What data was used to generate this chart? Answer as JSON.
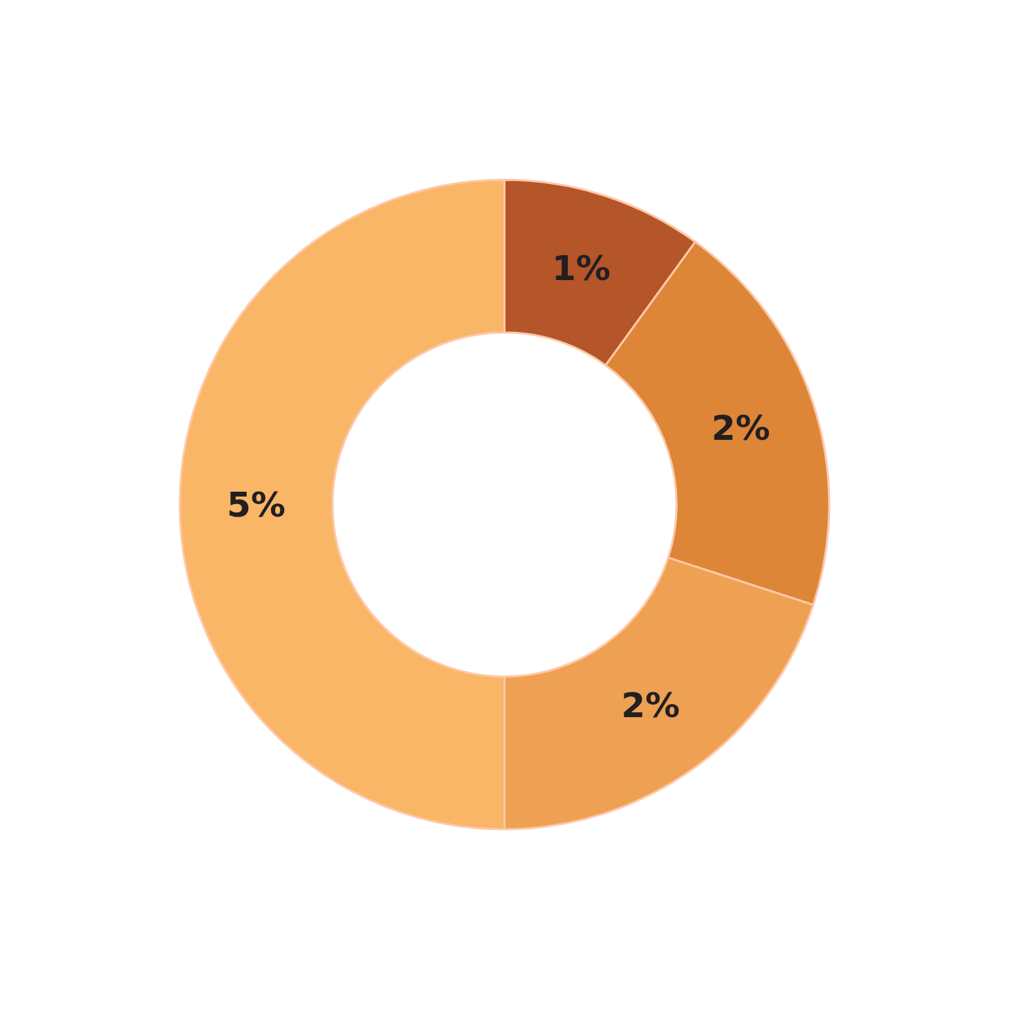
{
  "chart_data": {
    "type": "donut",
    "categories": [
      null,
      null,
      null,
      null
    ],
    "values": [
      1,
      2,
      2,
      5
    ],
    "colors": [
      "#b5552a",
      "#dd8638",
      "#eea152",
      "#f9b667"
    ],
    "value_labels": [
      "1%",
      "2%",
      "2%",
      "5%"
    ],
    "legend": false
  }
}
